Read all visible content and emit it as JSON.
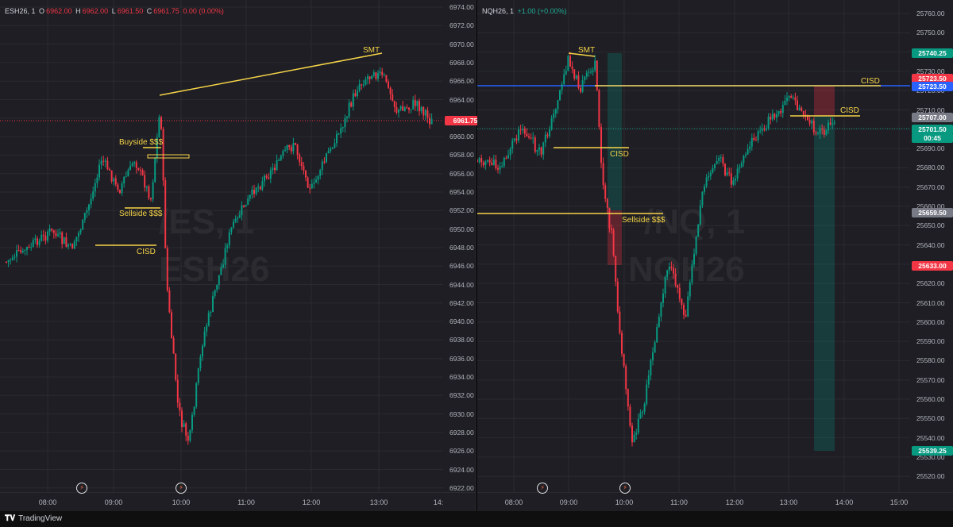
{
  "colors": {
    "up": "#089981",
    "down": "#f23645",
    "annotation": "#f6d448",
    "blue_line": "#2962ff"
  },
  "left": {
    "symbol": "ESH26, 1",
    "ohlc": {
      "o_label": "O",
      "o": "6962.00",
      "h_label": "H",
      "h": "6962.00",
      "l_label": "L",
      "l": "6961.50",
      "c_label": "C",
      "c": "6961.75",
      "change": "0.00 (0.00%)"
    },
    "watermark_1": "/ES, 1",
    "watermark_2": "ESH26",
    "price_ticks": [
      "6974.00",
      "6972.00",
      "6970.00",
      "6968.00",
      "6966.00",
      "6964.00",
      "6962.00",
      "6960.00",
      "6958.00",
      "6956.00",
      "6954.00",
      "6952.00",
      "6950.00",
      "6948.00",
      "6946.00",
      "6944.00",
      "6942.00",
      "6940.00",
      "6938.00",
      "6936.00",
      "6934.00",
      "6932.00",
      "6930.00",
      "6928.00",
      "6926.00",
      "6924.00",
      "6922.00"
    ],
    "price_tag": "6961.75",
    "time_ticks": [
      "08:00",
      "09:00",
      "10:00",
      "11:00",
      "12:00",
      "13:00",
      "14:"
    ],
    "labels": {
      "smt": "SMT",
      "buyside": "Buyside $$$",
      "sellside": "Sellside $$$",
      "cisd": "CISD"
    }
  },
  "right": {
    "symbol": "NQH26, 1",
    "change": "+1.00 (+0.00%)",
    "watermark_1": "/NQ, 1",
    "watermark_2": "NQH26",
    "price_ticks": [
      "25760.00",
      "25750.00",
      "25740.00",
      "25730.00",
      "25720.00",
      "25710.00",
      "25700.00",
      "25690.00",
      "25680.00",
      "25670.00",
      "25660.00",
      "25650.00",
      "25640.00",
      "25630.00",
      "25620.00",
      "25610.00",
      "25600.00",
      "25590.00",
      "25580.00",
      "25570.00",
      "25560.00",
      "25550.00",
      "25540.00",
      "25530.00",
      "25520.00"
    ],
    "price_tags": [
      "25740.25",
      "25723.50",
      "25723.50",
      "25707.00",
      "25701.50",
      "00:45",
      "25659.50",
      "25633.00",
      "25539.25"
    ],
    "time_ticks": [
      "08:00",
      "09:00",
      "10:00",
      "11:00",
      "12:00",
      "13:00",
      "14:00",
      "15:00"
    ],
    "labels": {
      "smt": "SMT",
      "cisd_1": "CISD",
      "cisd_2": "CISD",
      "cisd_3": "CISD",
      "sellside": "Sellside $$$"
    }
  },
  "footer": {
    "brand": "TradingView"
  }
}
